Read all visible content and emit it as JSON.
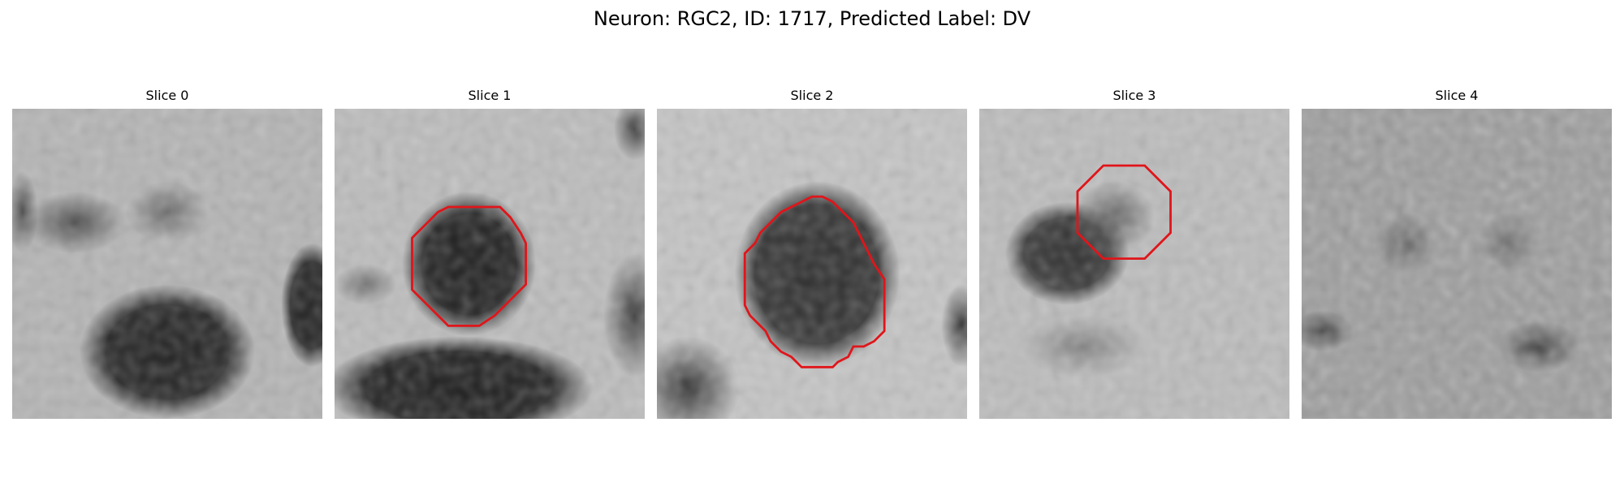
{
  "title": "Neuron: RGC2, ID: 1717, Predicted Label: DV",
  "panels": [
    {
      "label": "Slice 0"
    },
    {
      "label": "Slice 1"
    },
    {
      "label": "Slice 2"
    },
    {
      "label": "Slice 3"
    },
    {
      "label": "Slice 4"
    }
  ],
  "colors": {
    "contour": "#e0151a",
    "background": "#ffffff"
  }
}
